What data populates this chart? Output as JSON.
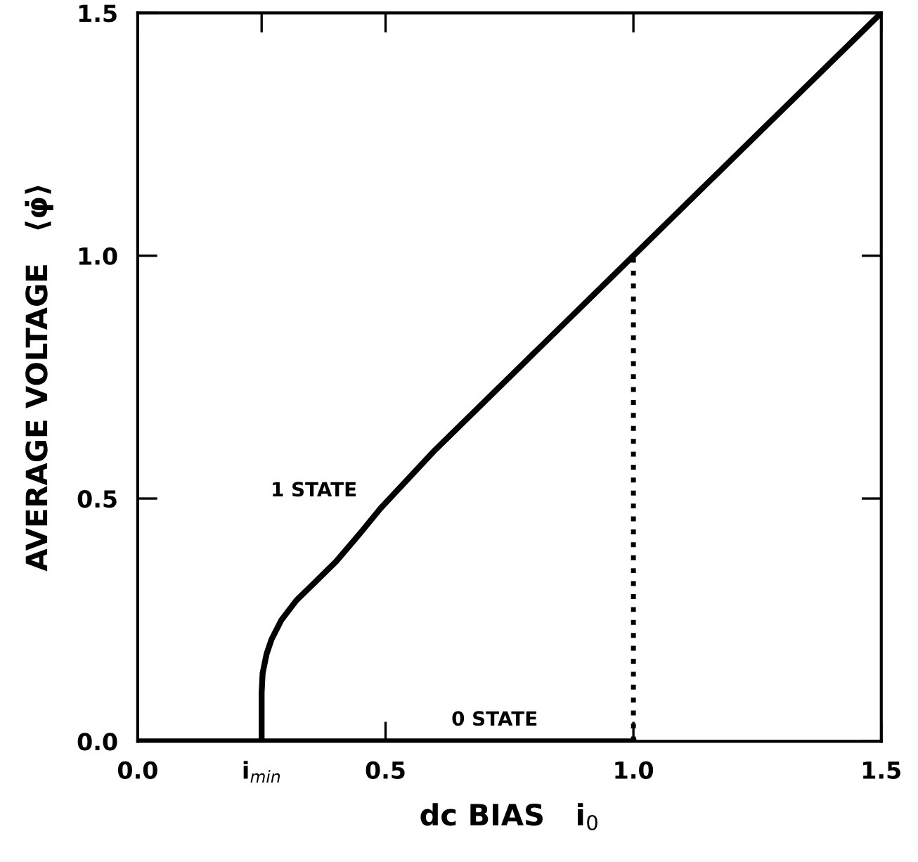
{
  "chart_data": {
    "type": "line",
    "xlabel": "dc BIAS   i$_{0}$",
    "ylabel": "AVERAGE VOLTAGE   ⟨φ̇⟩",
    "series": [
      {
        "name": "1 STATE",
        "color": "#000000",
        "line_style": "solid",
        "x": [
          0.25,
          0.25,
          0.252,
          0.26,
          0.27,
          0.29,
          0.32,
          0.36,
          0.4,
          0.45,
          0.49,
          0.6,
          0.8,
          1.0,
          1.25,
          1.5
        ],
        "values": [
          0,
          0.1,
          0.14,
          0.18,
          0.21,
          0.25,
          0.29,
          0.33,
          0.37,
          0.43,
          0.48,
          0.6,
          0.8,
          1.0,
          1.25,
          1.5
        ]
      },
      {
        "name": "0 STATE",
        "color": "#000000",
        "line_style": "solid",
        "x": [
          0,
          1.0
        ],
        "values": [
          0,
          0
        ]
      },
      {
        "color": "#000000",
        "line_style": "dotted",
        "x": [
          1.0,
          1.0,
          1.0,
          1.0,
          1.0
        ],
        "values": [
          0,
          0.25,
          0.5,
          0.75,
          1.0
        ]
      }
    ],
    "xlim": [
      0,
      1.5
    ],
    "ylim": [
      0,
      1.5
    ],
    "xticks": [
      {
        "value": 0,
        "label": "0.0"
      },
      {
        "value": 0.25,
        "label": "i$_{min}$"
      },
      0.5,
      {
        "value": 1,
        "label": "1.0"
      },
      1.5
    ],
    "yticks": [
      {
        "value": 0,
        "label": "0.0"
      },
      0.5,
      {
        "value": 1,
        "label": "1.0"
      },
      1.5
    ],
    "grid": false,
    "legend": false,
    "marker": "none"
  }
}
